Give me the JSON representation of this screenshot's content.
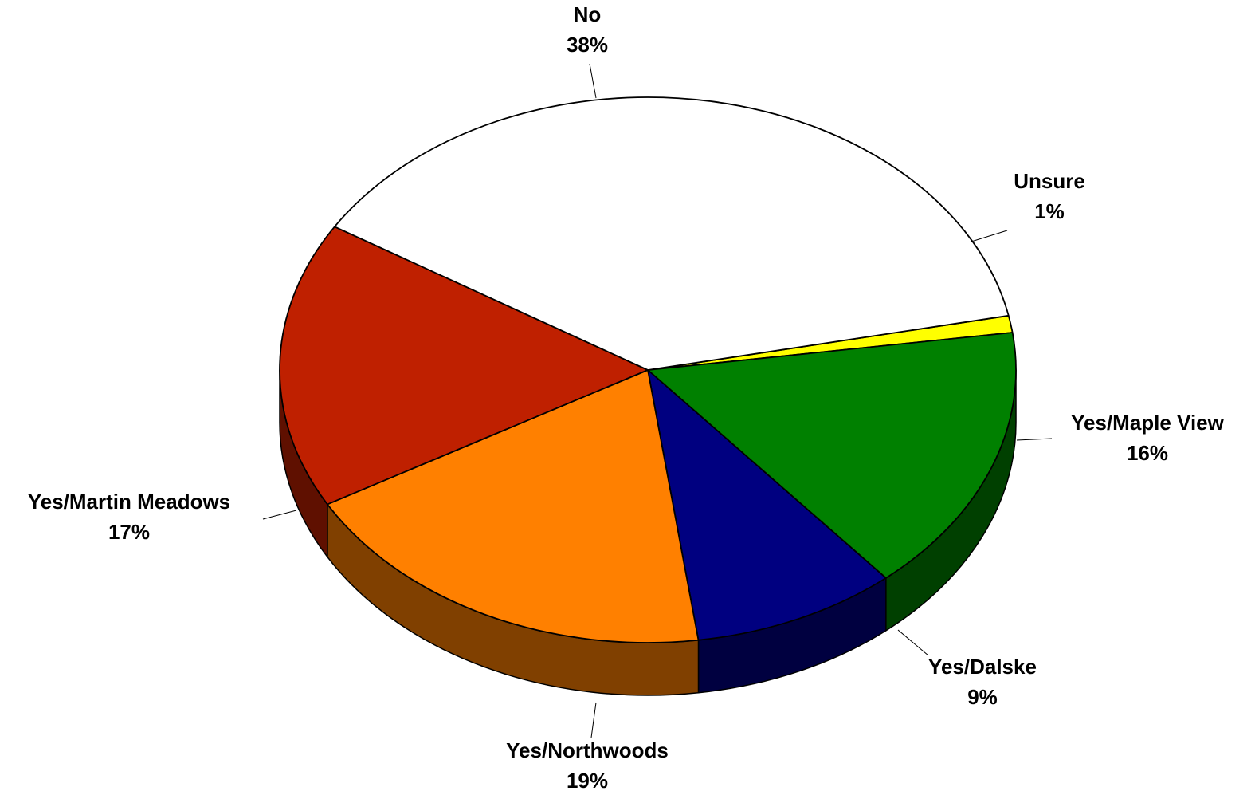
{
  "chart_data": {
    "type": "pie",
    "style": "3d",
    "title": "",
    "start_angle_deg": -11.5,
    "slices": [
      {
        "name": "Unsure",
        "value": 1,
        "label": "1%",
        "color": "#FFFF00",
        "side_color": "#8F8F00"
      },
      {
        "name": "Yes/Maple View",
        "value": 16,
        "label": "16%",
        "color": "#008000",
        "side_color": "#004000"
      },
      {
        "name": "Yes/Dalske",
        "value": 9,
        "label": "9%",
        "color": "#000080",
        "side_color": "#000040"
      },
      {
        "name": "Yes/Northwoods",
        "value": 19,
        "label": "19%",
        "color": "#FF8000",
        "side_color": "#804000"
      },
      {
        "name": "Yes/Martin Meadows",
        "value": 17,
        "label": "17%",
        "color": "#BF2000",
        "side_color": "#5F1000"
      },
      {
        "name": "No",
        "value": 38,
        "label": "38%",
        "color": "#FFFFFF",
        "side_color": "#FFFFFF"
      }
    ]
  }
}
